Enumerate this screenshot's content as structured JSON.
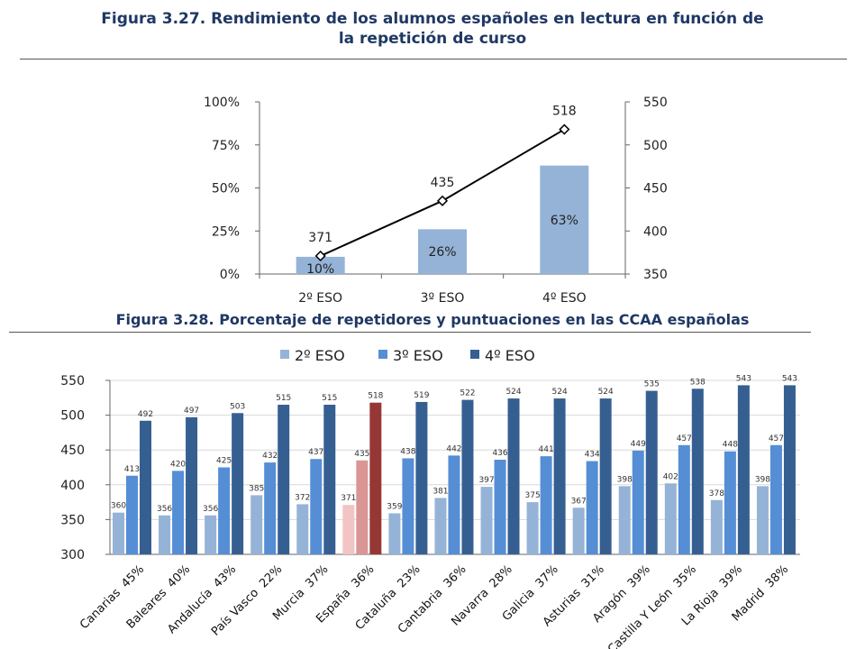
{
  "figure1": {
    "title_line1": "Figura 3.27. Rendimiento de los alumnos españoles en lectura en función de",
    "title_line2": "la repetición de curso"
  },
  "figure2": {
    "title": "Figura 3.28. Porcentaje de repetidores y puntuaciones en las CCAA españolas"
  },
  "colors": {
    "title": "#1f3864",
    "bar_light": "#95b3d7",
    "bar_mid": "#558ed5",
    "bar_dark": "#365f91",
    "spain_light": "#f2c4c4",
    "spain_mid": "#d99694",
    "spain_dark": "#953735"
  },
  "chart_data": [
    {
      "type": "bar",
      "categories": [
        "2º ESO",
        "3º ESO",
        "4º ESO"
      ],
      "series": [
        {
          "axis": "left",
          "values": [
            10,
            26,
            63
          ],
          "labels": [
            "10%",
            "26%",
            "63%"
          ]
        },
        {
          "axis": "right",
          "kind": "line",
          "values": [
            371,
            435,
            518
          ],
          "labels": [
            "371",
            "435",
            "518"
          ]
        }
      ],
      "left_axis": {
        "min": 0,
        "max": 100,
        "ticks": [
          "0%",
          "25%",
          "50%",
          "75%",
          "100%"
        ]
      },
      "right_axis": {
        "min": 350,
        "max": 550,
        "ticks": [
          "350",
          "400",
          "450",
          "500",
          "550"
        ]
      },
      "grid": false
    },
    {
      "type": "bar",
      "legend": [
        "2º ESO",
        "3º ESO",
        "4º ESO"
      ],
      "legend_position": "top",
      "categories": [
        {
          "region": "Canarias",
          "pct": "45%"
        },
        {
          "region": "Baleares",
          "pct": "40%"
        },
        {
          "region": "Andalucía",
          "pct": "43%"
        },
        {
          "region": "País Vasco",
          "pct": "22%"
        },
        {
          "region": "Murcia",
          "pct": "37%"
        },
        {
          "region": "España",
          "pct": "36%"
        },
        {
          "region": "Cataluña",
          "pct": "23%"
        },
        {
          "region": "Cantabria",
          "pct": "36%"
        },
        {
          "region": "Navarra",
          "pct": "28%"
        },
        {
          "region": "Galicia",
          "pct": "37%"
        },
        {
          "region": "Asturias",
          "pct": "31%"
        },
        {
          "region": "Aragón",
          "pct": "39%"
        },
        {
          "region": "Castilla Y León",
          "pct": "35%"
        },
        {
          "region": "La Rioja",
          "pct": "39%"
        },
        {
          "region": "Madrid",
          "pct": "38%"
        }
      ],
      "series": [
        {
          "name": "2º ESO",
          "values": [
            360,
            356,
            356,
            385,
            372,
            371,
            359,
            381,
            397,
            375,
            367,
            398,
            402,
            378,
            398
          ]
        },
        {
          "name": "3º ESO",
          "values": [
            413,
            420,
            425,
            432,
            437,
            435,
            438,
            442,
            436,
            441,
            434,
            449,
            457,
            448,
            457
          ]
        },
        {
          "name": "4º ESO",
          "values": [
            492,
            497,
            503,
            515,
            515,
            518,
            519,
            522,
            524,
            524,
            524,
            535,
            538,
            543,
            543
          ]
        }
      ],
      "highlight_index": 5,
      "y_axis": {
        "min": 300,
        "max": 550,
        "ticks": [
          "300",
          "350",
          "400",
          "450",
          "500",
          "550"
        ]
      },
      "grid": true
    }
  ]
}
